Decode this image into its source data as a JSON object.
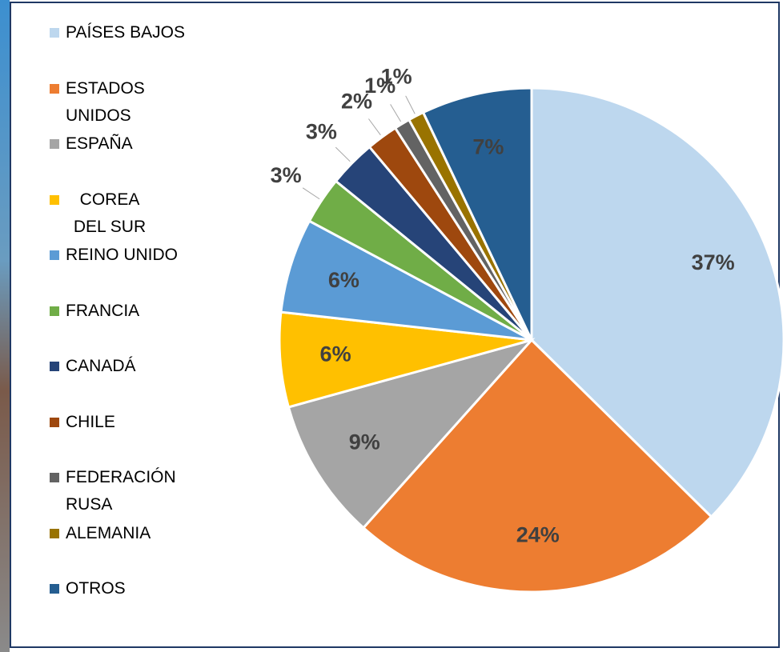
{
  "chart_data": {
    "type": "pie",
    "categories": [
      "PAÍSES BAJOS",
      "ESTADOS UNIDOS",
      "ESPAÑA",
      "COREA DEL SUR",
      "REINO UNIDO",
      "FRANCIA",
      "CANADÁ",
      "CHILE",
      "FEDERACIÓN RUSA",
      "ALEMANIA",
      "OTROS"
    ],
    "values": [
      37,
      24,
      9,
      6,
      6,
      3,
      3,
      2,
      1,
      1,
      7
    ],
    "value_labels": [
      "37%",
      "24%",
      "9%",
      "6%",
      "6%",
      "3%",
      "3%",
      "2%",
      "1%",
      "1%",
      "7%"
    ],
    "colors": [
      "#bdd7ee",
      "#ed7d31",
      "#a5a5a5",
      "#ffc000",
      "#5b9bd5",
      "#70ad47",
      "#264478",
      "#9e480e",
      "#636363",
      "#997300",
      "#255e91"
    ],
    "legend": "left"
  }
}
